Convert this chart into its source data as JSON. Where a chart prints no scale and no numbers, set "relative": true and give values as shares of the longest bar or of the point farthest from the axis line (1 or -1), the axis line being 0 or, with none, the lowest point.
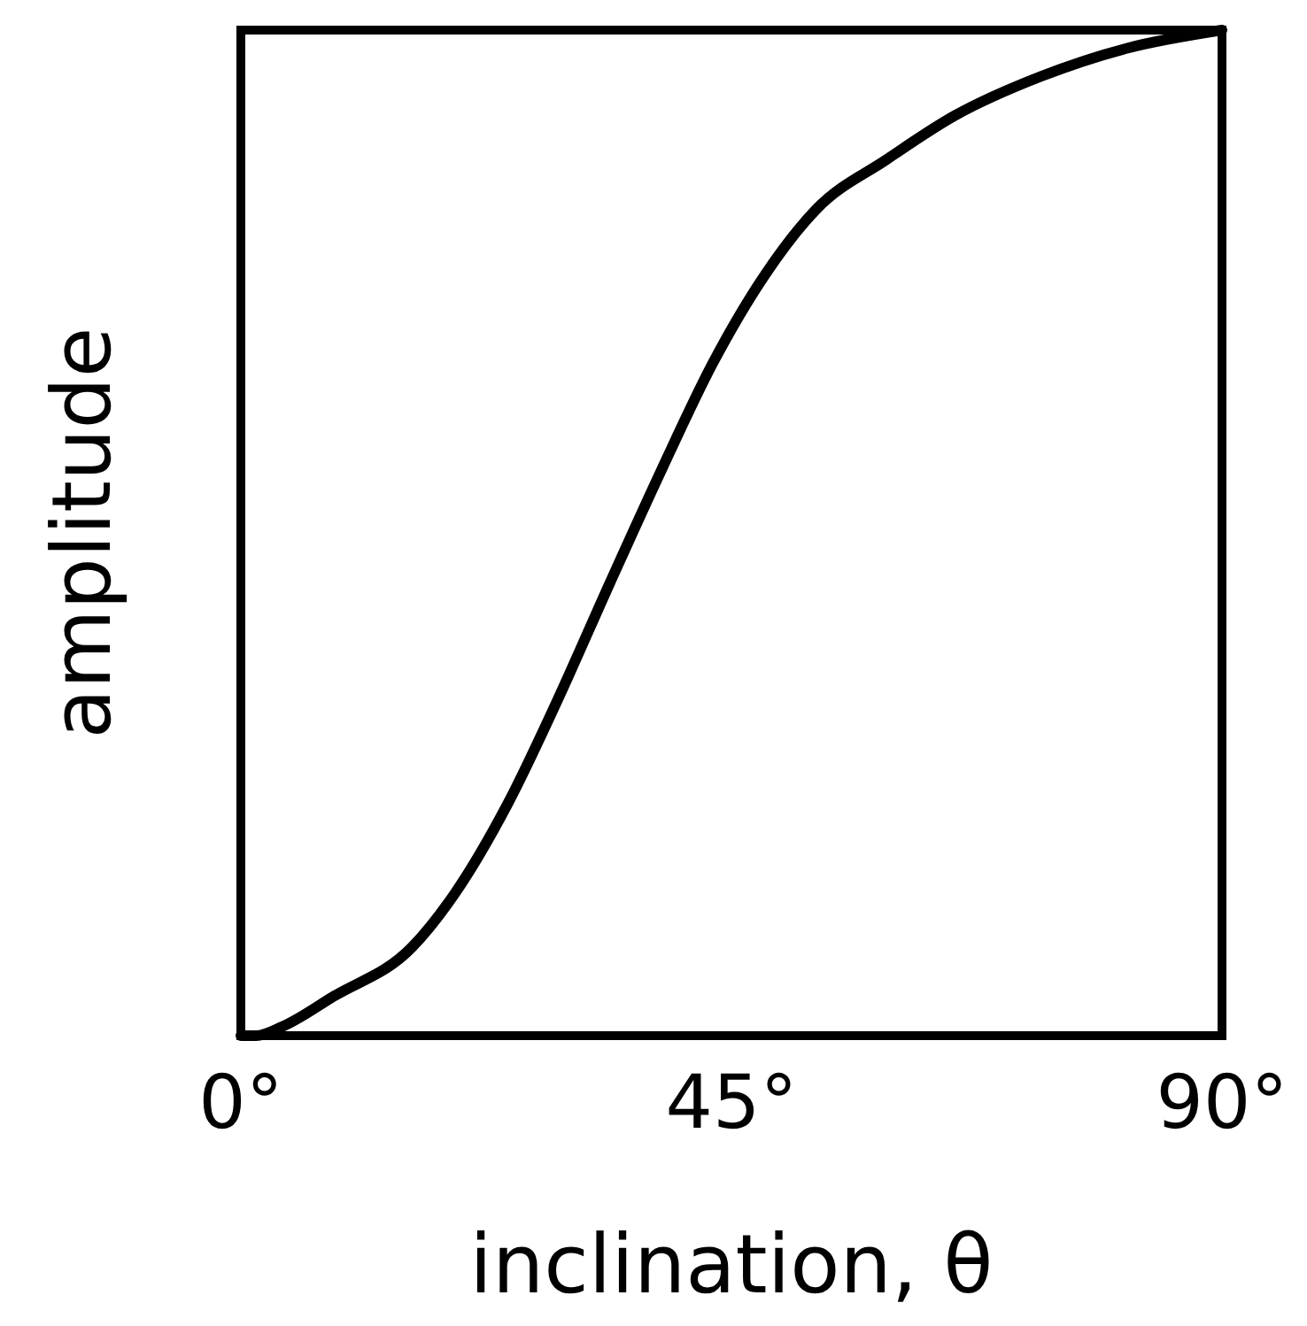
{
  "chart_data": {
    "type": "line",
    "xlabel": "inclination, θ",
    "ylabel": "amplitude",
    "relative": true,
    "color": "#000000",
    "x": [
      0,
      1.4,
      3.8,
      8.5,
      15.7,
      19.6,
      24.4,
      29.1,
      33.8,
      38.6,
      43.3,
      48.1,
      52.8,
      59.2,
      65.5,
      73.4,
      81.3,
      90
    ],
    "values": [
      0,
      0,
      0.009,
      0.039,
      0.088,
      0.141,
      0.229,
      0.335,
      0.449,
      0.563,
      0.669,
      0.757,
      0.822,
      0.871,
      0.915,
      0.954,
      0.982,
      1
    ],
    "xlim": [
      0,
      90
    ],
    "xticks": [
      {
        "value": 0,
        "label": "0°"
      },
      {
        "value": 45,
        "label": "45°"
      },
      {
        "value": 90,
        "label": "90°"
      }
    ]
  }
}
